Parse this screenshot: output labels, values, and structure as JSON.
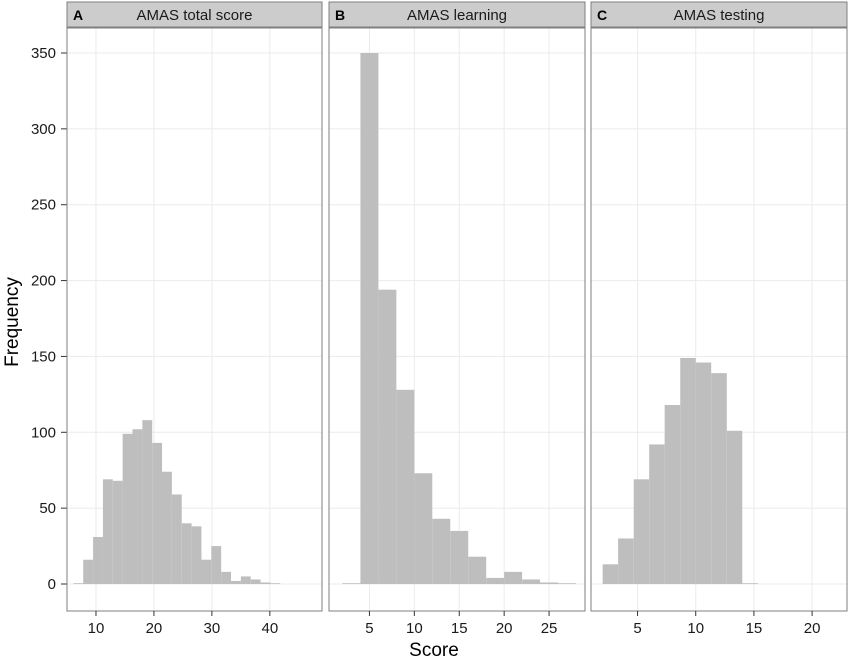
{
  "chart_data": {
    "type": "bar",
    "ylabel": "Frequency",
    "xlabel": "Score",
    "ylim": [
      0,
      360
    ],
    "y_ticks": [
      0,
      50,
      100,
      150,
      200,
      250,
      300,
      350
    ],
    "grid": true,
    "colors": {
      "bar": "#bebebe",
      "strip_fill": "#cccccc",
      "panel_border": "#7f7f7f",
      "grid": "#ebebeb"
    },
    "panels": [
      {
        "letter": "A",
        "title": "AMAS total score",
        "xlim": [
          5,
          49
        ],
        "x_ticks": [
          10,
          20,
          30,
          40
        ],
        "bin_width": 1.7,
        "bins": [
          {
            "x0": 6.1,
            "x1": 7.8,
            "value": 0
          },
          {
            "x0": 7.8,
            "x1": 9.5,
            "value": 16
          },
          {
            "x0": 9.5,
            "x1": 11.2,
            "value": 31
          },
          {
            "x0": 11.2,
            "x1": 12.9,
            "value": 69
          },
          {
            "x0": 12.9,
            "x1": 14.6,
            "value": 68
          },
          {
            "x0": 14.6,
            "x1": 16.3,
            "value": 99
          },
          {
            "x0": 16.3,
            "x1": 18.0,
            "value": 102
          },
          {
            "x0": 18.0,
            "x1": 19.7,
            "value": 108
          },
          {
            "x0": 19.7,
            "x1": 21.4,
            "value": 93
          },
          {
            "x0": 21.4,
            "x1": 23.1,
            "value": 74
          },
          {
            "x0": 23.1,
            "x1": 24.8,
            "value": 59
          },
          {
            "x0": 24.8,
            "x1": 26.5,
            "value": 40
          },
          {
            "x0": 26.5,
            "x1": 28.2,
            "value": 38
          },
          {
            "x0": 28.2,
            "x1": 29.9,
            "value": 16
          },
          {
            "x0": 29.9,
            "x1": 31.6,
            "value": 25
          },
          {
            "x0": 31.6,
            "x1": 33.3,
            "value": 8
          },
          {
            "x0": 33.3,
            "x1": 35.0,
            "value": 2
          },
          {
            "x0": 35.0,
            "x1": 36.7,
            "value": 5
          },
          {
            "x0": 36.7,
            "x1": 38.4,
            "value": 3
          },
          {
            "x0": 38.4,
            "x1": 40.1,
            "value": 1
          },
          {
            "x0": 40.1,
            "x1": 41.8,
            "value": 0
          }
        ]
      },
      {
        "letter": "B",
        "title": "AMAS learning",
        "xlim": [
          0.5,
          29
        ],
        "x_ticks": [
          5,
          10,
          15,
          20,
          25
        ],
        "bin_width": 2,
        "bins": [
          {
            "x0": 2,
            "x1": 4,
            "value": 0
          },
          {
            "x0": 4,
            "x1": 6,
            "value": 350
          },
          {
            "x0": 6,
            "x1": 8,
            "value": 194
          },
          {
            "x0": 8,
            "x1": 10,
            "value": 128
          },
          {
            "x0": 10,
            "x1": 12,
            "value": 73
          },
          {
            "x0": 12,
            "x1": 14,
            "value": 43
          },
          {
            "x0": 14,
            "x1": 16,
            "value": 35
          },
          {
            "x0": 16,
            "x1": 18,
            "value": 18
          },
          {
            "x0": 18,
            "x1": 20,
            "value": 4
          },
          {
            "x0": 20,
            "x1": 22,
            "value": 8
          },
          {
            "x0": 22,
            "x1": 24,
            "value": 3
          },
          {
            "x0": 24,
            "x1": 26,
            "value": 1
          },
          {
            "x0": 26,
            "x1": 28,
            "value": 0
          }
        ]
      },
      {
        "letter": "C",
        "title": "AMAS testing",
        "xlim": [
          1,
          23
        ],
        "x_ticks": [
          5,
          10,
          15,
          20
        ],
        "bin_width": 1.33,
        "bins": [
          {
            "x0": 2.0,
            "x1": 3.33,
            "value": 13
          },
          {
            "x0": 3.33,
            "x1": 4.67,
            "value": 30
          },
          {
            "x0": 4.67,
            "x1": 6.0,
            "value": 69
          },
          {
            "x0": 6.0,
            "x1": 7.33,
            "value": 92
          },
          {
            "x0": 7.33,
            "x1": 8.67,
            "value": 118
          },
          {
            "x0": 8.67,
            "x1": 10.0,
            "value": 149
          },
          {
            "x0": 10.0,
            "x1": 11.33,
            "value": 146
          },
          {
            "x0": 11.33,
            "x1": 12.67,
            "value": 139
          },
          {
            "x0": 12.67,
            "x1": 14.0,
            "value": 101
          },
          {
            "x0": 14.0,
            "x1": 15.33,
            "value": 0
          }
        ]
      }
    ]
  }
}
